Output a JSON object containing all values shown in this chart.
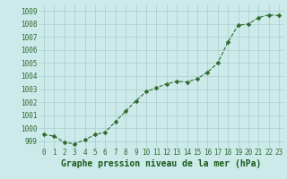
{
  "x": [
    0,
    1,
    2,
    3,
    4,
    5,
    6,
    7,
    8,
    9,
    10,
    11,
    12,
    13,
    14,
    15,
    16,
    17,
    18,
    19,
    20,
    21,
    22,
    23
  ],
  "y": [
    999.5,
    999.4,
    998.9,
    998.8,
    999.1,
    999.5,
    999.7,
    1000.5,
    1001.3,
    1002.1,
    1002.8,
    1003.1,
    1003.4,
    1003.6,
    1003.55,
    1003.8,
    1004.3,
    1005.0,
    1006.6,
    1007.9,
    1008.0,
    1008.5,
    1008.7,
    1008.65
  ],
  "line_color": "#2d6a2d",
  "marker": "D",
  "marker_size": 2.5,
  "bg_color": "#cceaea",
  "grid_color": "#aacccc",
  "xlabel": "Graphe pression niveau de la mer (hPa)",
  "xlabel_fontsize": 7,
  "xlabel_color": "#1a5a1a",
  "tick_color": "#2d6a2d",
  "tick_fontsize": 5.5,
  "ylim": [
    998.5,
    1009.5
  ],
  "yticks": [
    999,
    1000,
    1001,
    1002,
    1003,
    1004,
    1005,
    1006,
    1007,
    1008,
    1009
  ],
  "xlim": [
    -0.5,
    23.5
  ],
  "xticks": [
    0,
    1,
    2,
    3,
    4,
    5,
    6,
    7,
    8,
    9,
    10,
    11,
    12,
    13,
    14,
    15,
    16,
    17,
    18,
    19,
    20,
    21,
    22,
    23
  ]
}
